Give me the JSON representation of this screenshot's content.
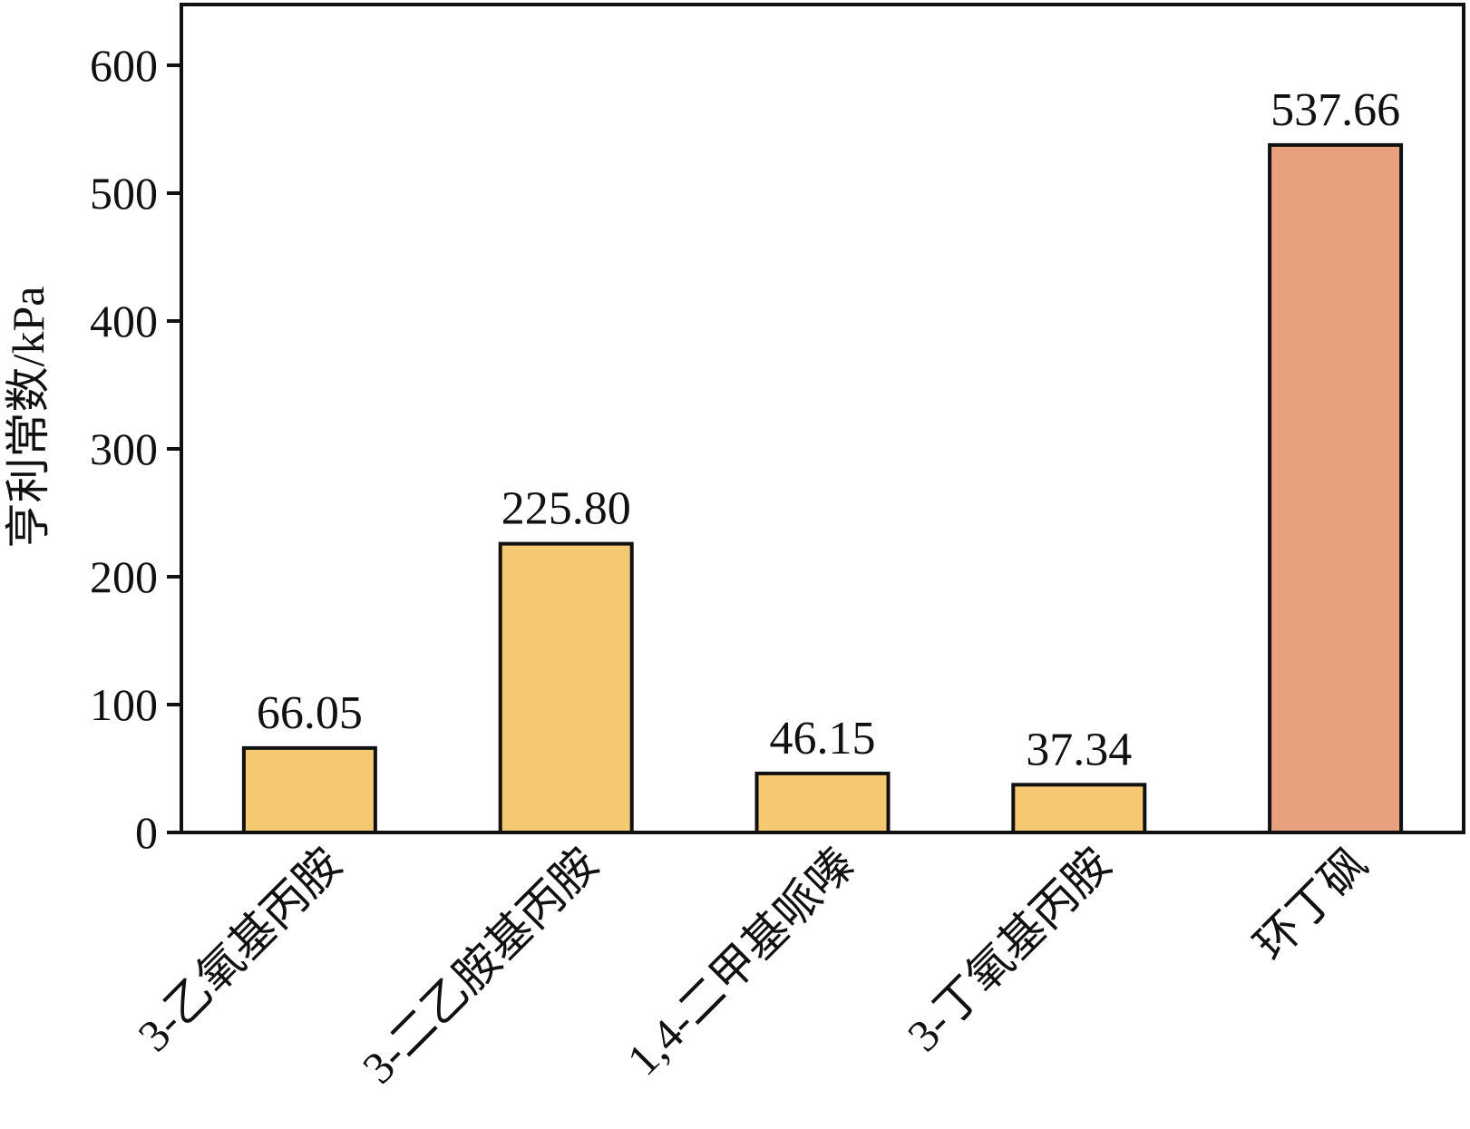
{
  "chart_data": {
    "type": "bar",
    "title": "",
    "xlabel": "",
    "ylabel": "亨利常数/kPa",
    "categories": [
      "3-乙氧基丙胺",
      "3-二乙胺基丙胺",
      "1,4-二甲基哌嗪",
      "3-丁氧基丙胺",
      "环丁砜"
    ],
    "values": [
      66.05,
      225.8,
      46.15,
      37.34,
      537.66
    ],
    "value_labels": [
      "66.05",
      "225.80",
      "46.15",
      "37.34",
      "537.66"
    ],
    "bar_colors": [
      "#F5C872",
      "#F5C872",
      "#F5C872",
      "#F5C872",
      "#E9A07F"
    ],
    "ylim": [
      0,
      650
    ],
    "yticks": [
      0,
      100,
      200,
      300,
      400,
      500,
      600
    ],
    "grid": false,
    "legend": "none"
  }
}
